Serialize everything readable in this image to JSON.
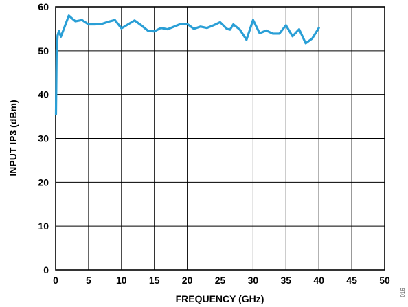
{
  "chart_data": {
    "type": "line",
    "title": "",
    "xlabel": "FREQUENCY (GHz)",
    "ylabel": "INPUT IP3 (dBm)",
    "xlim": [
      0,
      50
    ],
    "ylim": [
      0,
      60
    ],
    "x_ticks": [
      0,
      5,
      10,
      15,
      20,
      25,
      30,
      35,
      40,
      45,
      50
    ],
    "y_ticks": [
      0,
      10,
      20,
      30,
      40,
      50,
      60
    ],
    "grid": true,
    "legend": "none",
    "series": [
      {
        "color": "#2a9fd6",
        "x": [
          0.05,
          0.15,
          0.3,
          0.5,
          0.8,
          1.2,
          2,
          3,
          4,
          5,
          6,
          7,
          8,
          9,
          10,
          11,
          12,
          13,
          14,
          15,
          16,
          17,
          18,
          19,
          20,
          21,
          22,
          23,
          24,
          25,
          26,
          26.5,
          27,
          28,
          29,
          30,
          31,
          32,
          33,
          34,
          35,
          36,
          37,
          38,
          39,
          40
        ],
        "y": [
          35.5,
          50,
          53.5,
          54.5,
          53.2,
          54.8,
          58,
          56.7,
          57,
          56,
          56,
          56.1,
          56.6,
          57,
          55.1,
          56,
          56.9,
          55.8,
          54.6,
          54.4,
          55.2,
          54.9,
          55.5,
          56.1,
          56.1,
          55,
          55.5,
          55.2,
          55.8,
          56.5,
          55,
          54.8,
          56,
          54.8,
          52.5,
          57,
          54,
          54.6,
          53.9,
          53.9,
          55.8,
          53.3,
          54.9,
          51.7,
          52.8,
          55.2
        ]
      }
    ]
  },
  "figure_id": "016"
}
